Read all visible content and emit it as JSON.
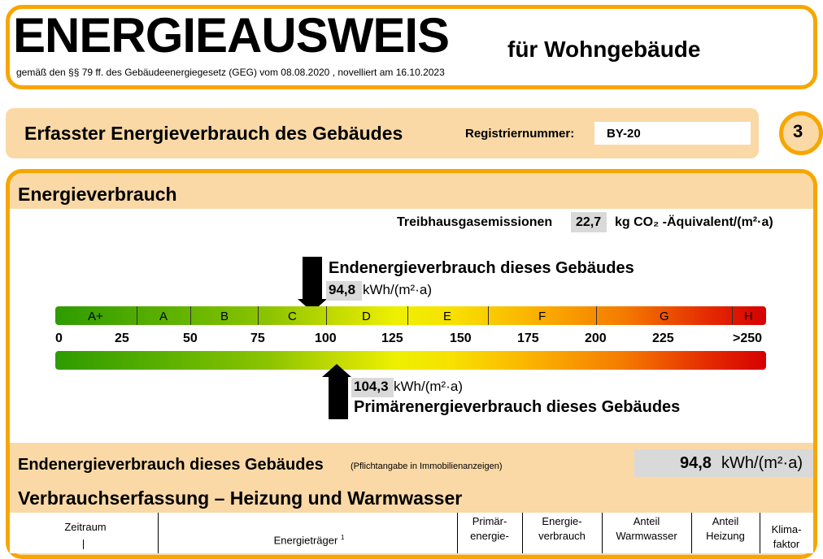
{
  "header": {
    "title": "ENERGIEAUSWEIS",
    "subtitle": "für Wohngebäude",
    "legal": "gemäß den §§ 79 ff. des Gebäudeenergiegesetz (GEG) vom 08.08.2020 , novelliert am 16.10.2023"
  },
  "section_bar": {
    "title": "Erfasster Energieverbrauch des Gebäudes",
    "reg_label": "Registriernummer:",
    "reg_value": "BY-20",
    "page_number": "3"
  },
  "energy": {
    "heading": "Energieverbrauch",
    "ghg_label": "Treibhausgasemissionen",
    "ghg_value": "22,7",
    "ghg_unit": "kg CO₂ -Äquivalent/(m²·a)",
    "end_label": "Endenergieverbrauch dieses Gebäudes",
    "end_value": "94,8",
    "end_unit": "kWh/(m²·a)",
    "end_value_num": 94.8,
    "primary_label": "Primärenergieverbrauch dieses Gebäudes",
    "primary_value": "104,3",
    "primary_unit": "kWh/(m²·a)",
    "primary_value_num": 104.3,
    "scale_classes": [
      "A+",
      "A",
      "B",
      "C",
      "D",
      "E",
      "F",
      "G",
      "H"
    ],
    "scale_ticks": [
      "0",
      "25",
      "50",
      "75",
      "100",
      "125",
      "150",
      "175",
      "200",
      "225",
      ">250"
    ],
    "colors": {
      "green": "#2E9B00",
      "yellow": "#EEF000",
      "orange": "#F57A00",
      "red": "#D60000",
      "frame": "#F7A600",
      "panel": "#FAD9A6"
    }
  },
  "end_row": {
    "label": "Endenergieverbrauch dieses Gebäudes",
    "note": "(Pflichtangabe in Immobilienanzeigen)",
    "value": "94,8",
    "unit": "kWh/(m²·a)"
  },
  "consumption": {
    "heading": "Verbrauchserfassung – Heizung und Warmwasser",
    "columns": {
      "period": "Zeitraum",
      "carrier": "Energieträger",
      "carrier_sup": "1",
      "primary": [
        "Primär-",
        "energie-"
      ],
      "energy": [
        "Energie-",
        "verbrauch"
      ],
      "hot_water": [
        "Anteil",
        "Warmwasser"
      ],
      "heating": [
        "Anteil",
        "Heizung"
      ],
      "climate": [
        "Klima-",
        "faktor"
      ]
    }
  }
}
